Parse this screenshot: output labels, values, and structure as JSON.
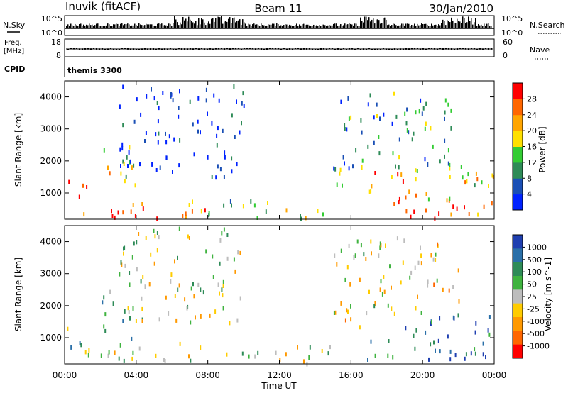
{
  "header": {
    "station": "Inuvik (fitACF)",
    "beam": "Beam 11",
    "date": "30/Jan/2010"
  },
  "noise_panel": {
    "left_label": "N.Sky",
    "left_ticks": [
      "10^5",
      "10^0"
    ],
    "right_label": "N.Search",
    "right_ticks": [
      "10^5",
      "10^0"
    ]
  },
  "freq_panel": {
    "left_label_line1": "Freq.",
    "left_label_line2": "[MHz]",
    "left_ticks": [
      "18",
      "8"
    ],
    "right_label": "Nave",
    "right_ticks": [
      "60",
      "0"
    ]
  },
  "cpid_panel": {
    "label": "CPID",
    "value": "themis 3300"
  },
  "colors": {
    "power_scale": [
      "#0022ff",
      "#1a4fb5",
      "#2e8b57",
      "#33cc33",
      "#ffe000",
      "#ffa500",
      "#ff6600",
      "#ff0000"
    ],
    "velocity_scale": [
      "#1f3fb0",
      "#2a6fa8",
      "#2e8b57",
      "#3fb33f",
      "#bdbdbd",
      "#ffcc00",
      "#ff9900",
      "#ff6600",
      "#ff0000"
    ]
  },
  "chart_data": [
    {
      "type": "heatmap",
      "panel": "power",
      "ylabel": "Slant Range [km]",
      "yticks": [
        "1000",
        "2000",
        "3000",
        "4000"
      ],
      "ylim": [
        180,
        4500
      ],
      "xlim": [
        0,
        24
      ],
      "colorbar_label": "Power [dB]",
      "colorbar_ticks": [
        "4",
        "8",
        "12",
        "16",
        "20",
        "24",
        "28"
      ],
      "clim": [
        0,
        32
      ],
      "scatter_regions": [
        {
          "t": [
            0.0,
            1.2
          ],
          "r": [
            700,
            1500
          ],
          "level": 0.85
        },
        {
          "t": [
            1.0,
            8.0
          ],
          "r": [
            200,
            900
          ],
          "level": 0.8
        },
        {
          "t": [
            2.0,
            4.0
          ],
          "r": [
            1000,
            2500
          ],
          "level": 0.6
        },
        {
          "t": [
            8.0,
            12.0
          ],
          "r": [
            200,
            900
          ],
          "level": 0.35
        },
        {
          "t": [
            12.0,
            15.0
          ],
          "r": [
            200,
            800
          ],
          "level": 0.45
        },
        {
          "t": [
            15.0,
            16.5
          ],
          "r": [
            1200,
            2200
          ],
          "level": 0.3
        },
        {
          "t": [
            16.5,
            23.9
          ],
          "r": [
            200,
            900
          ],
          "level": 0.85
        },
        {
          "t": [
            16.5,
            19.0
          ],
          "r": [
            1000,
            1800
          ],
          "level": 0.75
        },
        {
          "t": [
            19.0,
            24.0
          ],
          "r": [
            800,
            2000
          ],
          "level": 0.55
        },
        {
          "t": [
            3.0,
            10.0
          ],
          "r": [
            1500,
            4500
          ],
          "level": 0.1
        },
        {
          "t": [
            15.0,
            22.0
          ],
          "r": [
            1800,
            4200
          ],
          "level": 0.3
        }
      ]
    },
    {
      "type": "heatmap",
      "panel": "velocity",
      "ylabel": "Slant Range [km]",
      "yticks": [
        "1000",
        "2000",
        "3000",
        "4000"
      ],
      "ylim": [
        180,
        4500
      ],
      "xlim": [
        0,
        24
      ],
      "xlabel": "Time UT",
      "xticks": [
        "00:00",
        "04:00",
        "08:00",
        "12:00",
        "16:00",
        "20:00",
        "00:00"
      ],
      "colorbar_label": "Velocity [m s^-1]",
      "colorbar_ticks": [
        "1000",
        "500",
        "100",
        "50",
        "25",
        "-25",
        "-100",
        "-500",
        "-1000"
      ],
      "scatter_regions": [
        {
          "t": [
            0.0,
            1.2
          ],
          "r": [
            700,
            1500
          ],
          "level": 0.35
        },
        {
          "t": [
            1.0,
            8.0
          ],
          "r": [
            200,
            900
          ],
          "level": 0.45
        },
        {
          "t": [
            2.0,
            4.0
          ],
          "r": [
            1000,
            2500
          ],
          "level": 0.4
        },
        {
          "t": [
            8.0,
            15.0
          ],
          "r": [
            200,
            800
          ],
          "level": 0.5
        },
        {
          "t": [
            15.0,
            16.5
          ],
          "r": [
            1200,
            2200
          ],
          "level": 0.6
        },
        {
          "t": [
            16.5,
            24.0
          ],
          "r": [
            200,
            1000
          ],
          "level": 0.2
        },
        {
          "t": [
            19.0,
            24.0
          ],
          "r": [
            900,
            1800
          ],
          "level": 0.15
        },
        {
          "t": [
            3.0,
            10.0
          ],
          "r": [
            1500,
            4500
          ],
          "level": 0.5
        },
        {
          "t": [
            15.0,
            22.0
          ],
          "r": [
            1800,
            4200
          ],
          "level": 0.55
        }
      ]
    }
  ]
}
